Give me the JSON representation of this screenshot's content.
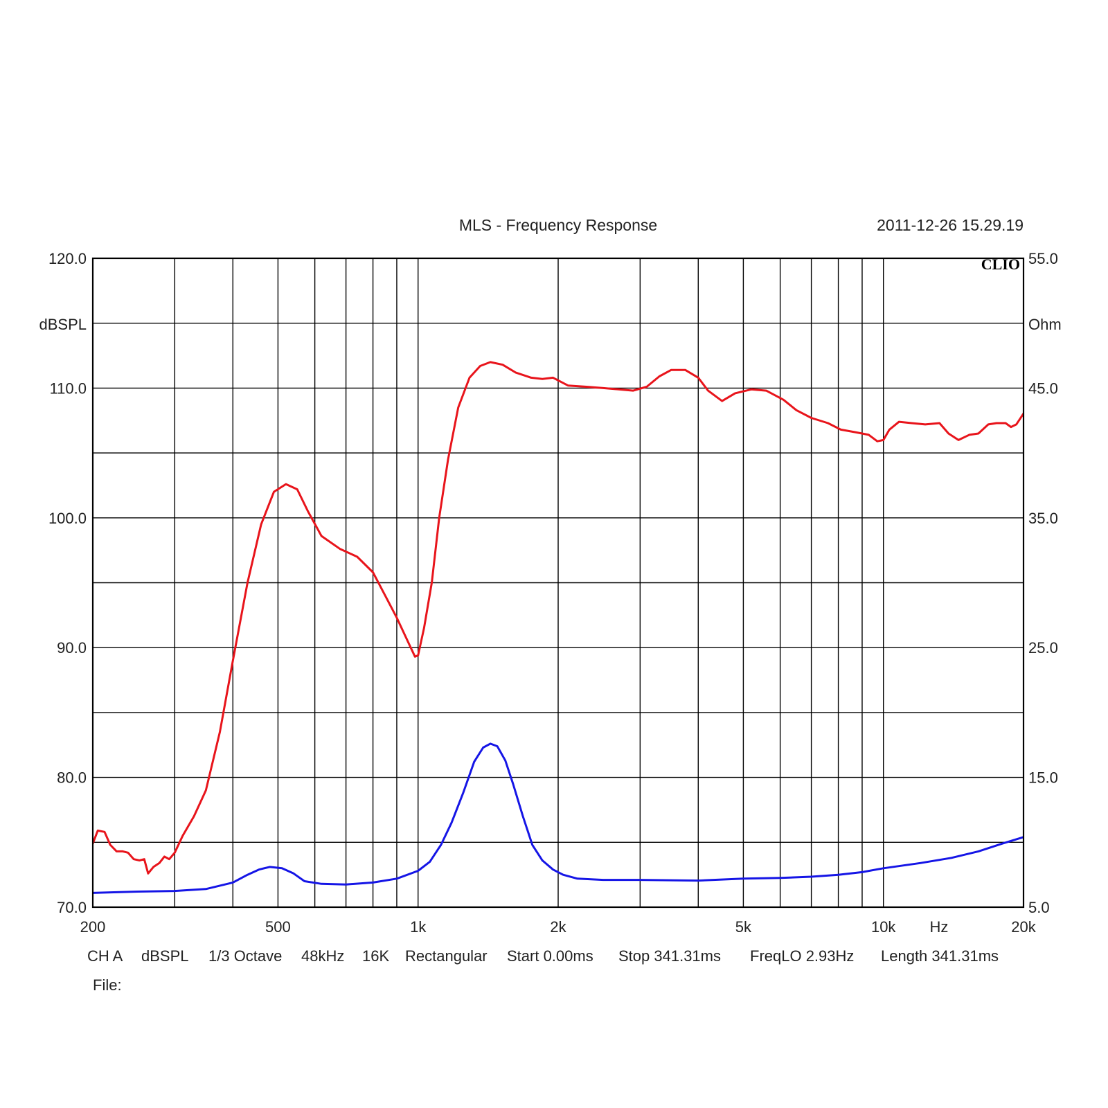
{
  "header": {
    "title": "MLS - Frequency Response",
    "timestamp": "2011-12-26 15.29.19",
    "brand": "CLIO"
  },
  "footer": {
    "settings": [
      "CH A",
      "dBSPL",
      "1/3 Octave",
      "48kHz",
      "16K",
      "Rectangular",
      "Start 0.00ms",
      "Stop 341.31ms",
      "FreqLO 2.93Hz",
      "Length 341.31ms"
    ],
    "file_label": "File:"
  },
  "colors": {
    "spl_curve": "#e8141b",
    "impedance_curve": "#1515e6",
    "grid": "#000000",
    "background": "#ffffff"
  },
  "chart_data": {
    "type": "line",
    "title": "MLS - Frequency Response",
    "x_scale": "log",
    "xlim": [
      200,
      20000
    ],
    "x_ticks": [
      {
        "value": 200,
        "label": "200"
      },
      {
        "value": 500,
        "label": "500"
      },
      {
        "value": 1000,
        "label": "1k"
      },
      {
        "value": 2000,
        "label": "2k"
      },
      {
        "value": 5000,
        "label": "5k"
      },
      {
        "value": 10000,
        "label": "10k"
      },
      {
        "value": 20000,
        "label": "20k"
      }
    ],
    "x_unit_label": "Hz",
    "x_gridlines": [
      200,
      300,
      400,
      500,
      600,
      700,
      800,
      900,
      1000,
      2000,
      3000,
      4000,
      5000,
      6000,
      7000,
      8000,
      9000,
      10000,
      20000
    ],
    "y_left": {
      "label": "dBSPL",
      "ylim": [
        70,
        120
      ],
      "ticks": [
        {
          "value": 70,
          "label": "70.0"
        },
        {
          "value": 80,
          "label": "80.0"
        },
        {
          "value": 90,
          "label": "90.0"
        },
        {
          "value": 100,
          "label": "100.0"
        },
        {
          "value": 110,
          "label": "110.0"
        },
        {
          "value": 120,
          "label": "120.0"
        }
      ],
      "gridlines": [
        70,
        75,
        80,
        85,
        90,
        95,
        100,
        105,
        110,
        115,
        120
      ]
    },
    "y_right": {
      "label": "Ohm",
      "ylim": [
        5,
        55
      ],
      "ticks": [
        {
          "value": 5,
          "label": "5.0"
        },
        {
          "value": 15,
          "label": "15.0"
        },
        {
          "value": 25,
          "label": "25.0"
        },
        {
          "value": 35,
          "label": "35.0"
        },
        {
          "value": 45,
          "label": "45.0"
        },
        {
          "value": 55,
          "label": "55.0"
        }
      ]
    },
    "grid": true,
    "series": [
      {
        "axis": "left",
        "color": "#e8141b",
        "points": [
          [
            200,
            74.9
          ],
          [
            205,
            75.9
          ],
          [
            212,
            75.8
          ],
          [
            218,
            74.8
          ],
          [
            225,
            74.3
          ],
          [
            232,
            74.3
          ],
          [
            238,
            74.2
          ],
          [
            245,
            73.7
          ],
          [
            252,
            73.6
          ],
          [
            258,
            73.7
          ],
          [
            263,
            72.6
          ],
          [
            270,
            73.1
          ],
          [
            278,
            73.4
          ],
          [
            285,
            73.9
          ],
          [
            292,
            73.7
          ],
          [
            300,
            74.2
          ],
          [
            312,
            75.5
          ],
          [
            330,
            77.0
          ],
          [
            350,
            79.0
          ],
          [
            375,
            83.5
          ],
          [
            400,
            89.0
          ],
          [
            430,
            95.0
          ],
          [
            460,
            99.5
          ],
          [
            490,
            102.0
          ],
          [
            520,
            102.6
          ],
          [
            550,
            102.2
          ],
          [
            580,
            100.5
          ],
          [
            620,
            98.6
          ],
          [
            680,
            97.6
          ],
          [
            740,
            97.0
          ],
          [
            800,
            95.8
          ],
          [
            850,
            94.0
          ],
          [
            900,
            92.3
          ],
          [
            950,
            90.5
          ],
          [
            985,
            89.3
          ],
          [
            1000,
            89.4
          ],
          [
            1030,
            91.5
          ],
          [
            1070,
            95.0
          ],
          [
            1110,
            100.0
          ],
          [
            1160,
            104.5
          ],
          [
            1220,
            108.5
          ],
          [
            1290,
            110.8
          ],
          [
            1360,
            111.7
          ],
          [
            1430,
            112.0
          ],
          [
            1520,
            111.8
          ],
          [
            1620,
            111.2
          ],
          [
            1750,
            110.8
          ],
          [
            1850,
            110.7
          ],
          [
            1950,
            110.8
          ],
          [
            2100,
            110.2
          ],
          [
            2300,
            110.1
          ],
          [
            2500,
            110.0
          ],
          [
            2700,
            109.9
          ],
          [
            2900,
            109.8
          ],
          [
            3100,
            110.1
          ],
          [
            3300,
            110.9
          ],
          [
            3500,
            111.4
          ],
          [
            3750,
            111.4
          ],
          [
            4000,
            110.8
          ],
          [
            4200,
            109.8
          ],
          [
            4500,
            109.0
          ],
          [
            4800,
            109.6
          ],
          [
            5200,
            109.9
          ],
          [
            5600,
            109.8
          ],
          [
            6100,
            109.1
          ],
          [
            6500,
            108.3
          ],
          [
            7000,
            107.7
          ],
          [
            7600,
            107.3
          ],
          [
            8100,
            106.8
          ],
          [
            8700,
            106.6
          ],
          [
            9300,
            106.4
          ],
          [
            9700,
            105.9
          ],
          [
            10000,
            106.0
          ],
          [
            10300,
            106.8
          ],
          [
            10800,
            107.4
          ],
          [
            11500,
            107.3
          ],
          [
            12300,
            107.2
          ],
          [
            13200,
            107.3
          ],
          [
            13800,
            106.5
          ],
          [
            14500,
            106.0
          ],
          [
            15300,
            106.4
          ],
          [
            16000,
            106.5
          ],
          [
            16800,
            107.2
          ],
          [
            17500,
            107.3
          ],
          [
            18300,
            107.3
          ],
          [
            18800,
            107.0
          ],
          [
            19300,
            107.2
          ],
          [
            19800,
            107.8
          ],
          [
            20300,
            108.4
          ],
          [
            20900,
            108.3
          ],
          [
            21800,
            108.0
          ],
          [
            22500,
            107.8
          ]
        ]
      },
      {
        "axis": "right",
        "color": "#1515e6",
        "points": [
          [
            200,
            6.1
          ],
          [
            250,
            6.2
          ],
          [
            300,
            6.25
          ],
          [
            350,
            6.4
          ],
          [
            400,
            6.9
          ],
          [
            430,
            7.5
          ],
          [
            455,
            7.9
          ],
          [
            480,
            8.1
          ],
          [
            510,
            8.0
          ],
          [
            540,
            7.6
          ],
          [
            570,
            7.0
          ],
          [
            620,
            6.8
          ],
          [
            700,
            6.75
          ],
          [
            800,
            6.9
          ],
          [
            900,
            7.2
          ],
          [
            1000,
            7.8
          ],
          [
            1060,
            8.5
          ],
          [
            1120,
            9.8
          ],
          [
            1180,
            11.5
          ],
          [
            1250,
            13.8
          ],
          [
            1320,
            16.2
          ],
          [
            1380,
            17.3
          ],
          [
            1430,
            17.6
          ],
          [
            1480,
            17.4
          ],
          [
            1540,
            16.3
          ],
          [
            1600,
            14.5
          ],
          [
            1680,
            12.0
          ],
          [
            1760,
            9.8
          ],
          [
            1850,
            8.6
          ],
          [
            1950,
            7.9
          ],
          [
            2050,
            7.5
          ],
          [
            2200,
            7.2
          ],
          [
            2500,
            7.1
          ],
          [
            3000,
            7.1
          ],
          [
            4000,
            7.05
          ],
          [
            5000,
            7.2
          ],
          [
            6000,
            7.25
          ],
          [
            7000,
            7.35
          ],
          [
            8000,
            7.5
          ],
          [
            9000,
            7.7
          ],
          [
            10000,
            8.0
          ],
          [
            12000,
            8.4
          ],
          [
            14000,
            8.8
          ],
          [
            16000,
            9.3
          ],
          [
            18000,
            9.9
          ],
          [
            20000,
            10.4
          ],
          [
            22500,
            11.0
          ]
        ]
      }
    ]
  }
}
